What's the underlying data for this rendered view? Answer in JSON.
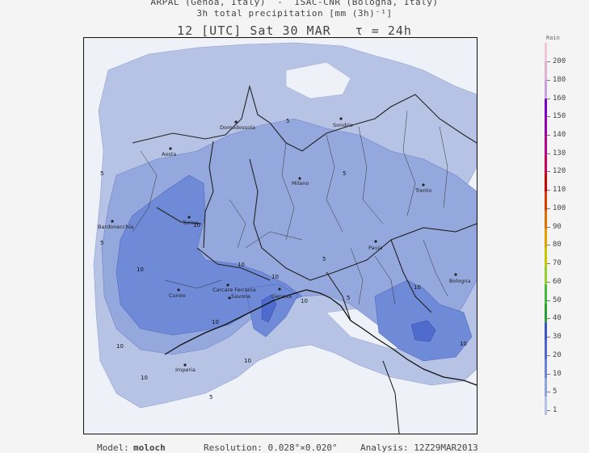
{
  "header": {
    "line1": "ARPAL (Genoa, Italy)  -  ISAC-CNR (Bologna, Italy)",
    "line2": "3h total precipitation [mm (3h)⁻¹]",
    "line3": "12 [UTC] Sat 30 MAR   τ = 24h"
  },
  "map": {
    "colors": {
      "background_light": "#eef1f7",
      "level_1": "#b7c3e5",
      "level_5": "#95a8dd",
      "level_10": "#6f8ad6",
      "level_20": "#4f6ccc",
      "border": "#111111"
    },
    "cities": [
      {
        "name": "Domodossola"
      },
      {
        "name": "Sondrio"
      },
      {
        "name": "Aosta"
      },
      {
        "name": "Milano"
      },
      {
        "name": "Trento"
      },
      {
        "name": "Bardonecchia"
      },
      {
        "name": "Torino"
      },
      {
        "name": "Pavia"
      },
      {
        "name": "Cuneo"
      },
      {
        "name": "Genova"
      },
      {
        "name": "Savona"
      },
      {
        "name": "Carcare Ferrania"
      },
      {
        "name": "Bologna"
      },
      {
        "name": "Imperia"
      }
    ],
    "contour_labels": [
      "5",
      "10",
      "10",
      "10",
      "10",
      "10",
      "10",
      "10",
      "10",
      "10",
      "5",
      "5",
      "5",
      "5",
      "10",
      "5",
      "10",
      "5"
    ]
  },
  "legend": {
    "title": "Rain",
    "levels": [
      "1",
      "5",
      "10",
      "20",
      "30",
      "40",
      "50",
      "60",
      "70",
      "80",
      "90",
      "100",
      "110",
      "120",
      "130",
      "140",
      "150",
      "160",
      "180",
      "200"
    ],
    "colors": [
      "#b5c3e8",
      "#8fa3e0",
      "#6b84d8",
      "#4d66d0",
      "#3b55c8",
      "#2aa12f",
      "#3fbc3f",
      "#9acd32",
      "#c8c800",
      "#e0a000",
      "#e07000",
      "#d83a00",
      "#c80000",
      "#c8005a",
      "#b4008c",
      "#9600b4",
      "#7800c8",
      "#c8a0e6",
      "#e0b0d0",
      "#f0c8d8"
    ]
  },
  "footer": {
    "model_label": "Model:",
    "model_value": "moloch",
    "resolution": "Resolution: 0.028°×0.020°",
    "analysis": "Analysis: 12Z29MAR2013"
  }
}
